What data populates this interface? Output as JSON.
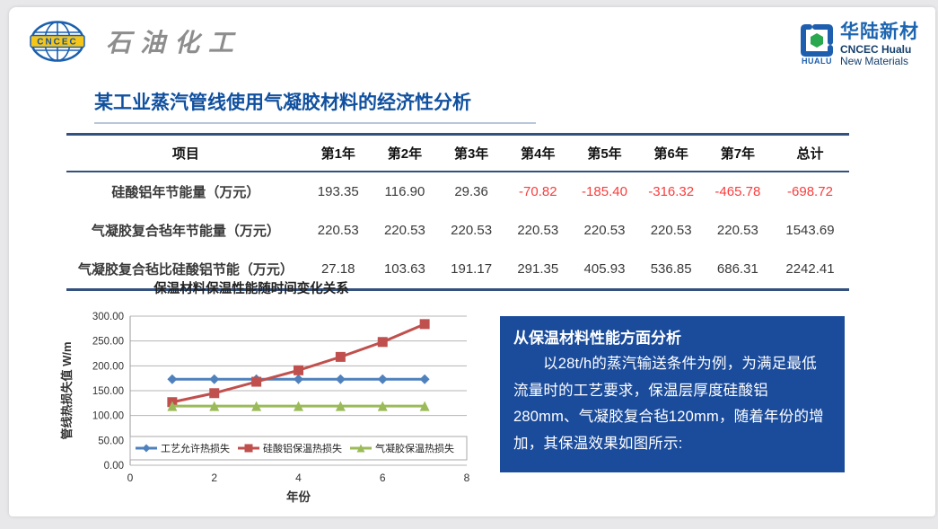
{
  "header": {
    "left_logo": {
      "badge": "CNCEC",
      "brand": "石油化工"
    },
    "right_logo": {
      "mark_text": "HUALU",
      "name_cn": "华陆新材",
      "name_en1": "CNCEC Hualu",
      "name_en2": "New Materials"
    }
  },
  "title": "某工业蒸汽管线使用气凝胶材料的经济性分析",
  "table": {
    "headers": [
      "项目",
      "第1年",
      "第2年",
      "第3年",
      "第4年",
      "第5年",
      "第6年",
      "第7年",
      "总计"
    ],
    "rows": [
      {
        "label": "硅酸铝年节能量（万元）",
        "values": [
          "193.35",
          "116.90",
          "29.36",
          "-70.82",
          "-185.40",
          "-316.32",
          "-465.78",
          "-698.72"
        ]
      },
      {
        "label": "气凝胶复合毡年节能量（万元）",
        "values": [
          "220.53",
          "220.53",
          "220.53",
          "220.53",
          "220.53",
          "220.53",
          "220.53",
          "1543.69"
        ]
      },
      {
        "label": "气凝胶复合毡比硅酸铝节能（万元）",
        "values": [
          "27.18",
          "103.63",
          "191.17",
          "291.35",
          "405.93",
          "536.85",
          "686.31",
          "2242.41"
        ]
      }
    ]
  },
  "chart_data": {
    "type": "line",
    "title": "保温材料保温性能随时间变化关系",
    "xlabel": "年份",
    "ylabel": "管线热损失值 W/m",
    "x": [
      1,
      2,
      3,
      4,
      5,
      6,
      7
    ],
    "xlim": [
      0,
      8
    ],
    "ylim": [
      0,
      300
    ],
    "x_ticks": [
      "0",
      "2",
      "4",
      "6",
      "8"
    ],
    "y_ticks": [
      "300.00",
      "250.00",
      "200.00",
      "150.00",
      "100.00",
      "50.00",
      "0.00"
    ],
    "grid": true,
    "legend_position": "bottom-inside",
    "series": [
      {
        "name": "工艺允许热损失",
        "marker": "diamond",
        "color": "#4F81BD",
        "values": [
          173,
          173,
          173,
          173,
          173,
          173,
          173
        ]
      },
      {
        "name": "硅酸铝保温热损失",
        "marker": "square",
        "color": "#C0504D",
        "values": [
          127,
          145,
          168,
          191,
          218,
          248,
          284
        ]
      },
      {
        "name": "气凝胶保温热损失",
        "marker": "triangle",
        "color": "#9BBB59",
        "values": [
          119,
          119,
          119,
          119,
          119,
          119,
          119
        ]
      }
    ]
  },
  "info_box": {
    "heading": "从保温材料性能方面分析",
    "body": "以28t/h的蒸汽输送条件为例，为满足最低流量时的工艺要求，保温层厚度硅酸铝280mm、气凝胶复合毡120mm，随着年份的增加，其保温效果如图所示:"
  },
  "colors": {
    "title_blue": "#10509f",
    "table_rule": "#33517e",
    "negative_red": "#fa3c3c",
    "info_box_bg": "#1b4c9c",
    "series_blue": "#4F81BD",
    "series_red": "#C0504D",
    "series_green": "#9BBB59"
  }
}
